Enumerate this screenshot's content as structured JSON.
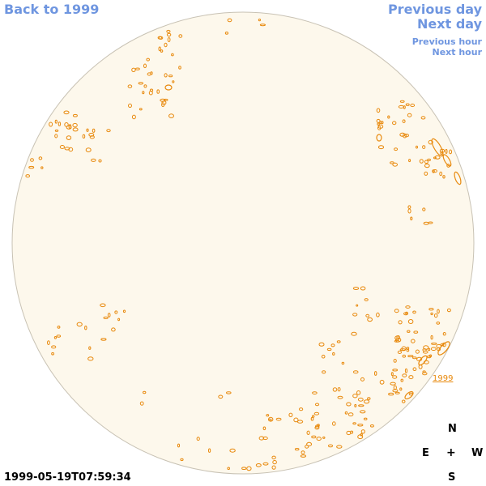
{
  "nav": {
    "back_label": "Back to 1999",
    "previous_day": "Previous day",
    "next_day": "Next day",
    "previous_hour": "Previous hour",
    "next_hour": "Next hour"
  },
  "compass": {
    "north": "N",
    "east": "E",
    "center": "+",
    "west": "W",
    "south": "S"
  },
  "timestamp": "1999-05-19T07:59:34",
  "year_link": "1999",
  "colors": {
    "link": "#6f96e0",
    "disk_fill": "#fdf8ec",
    "disk_border": "#c8c2b4",
    "contour": "#e8890c"
  }
}
